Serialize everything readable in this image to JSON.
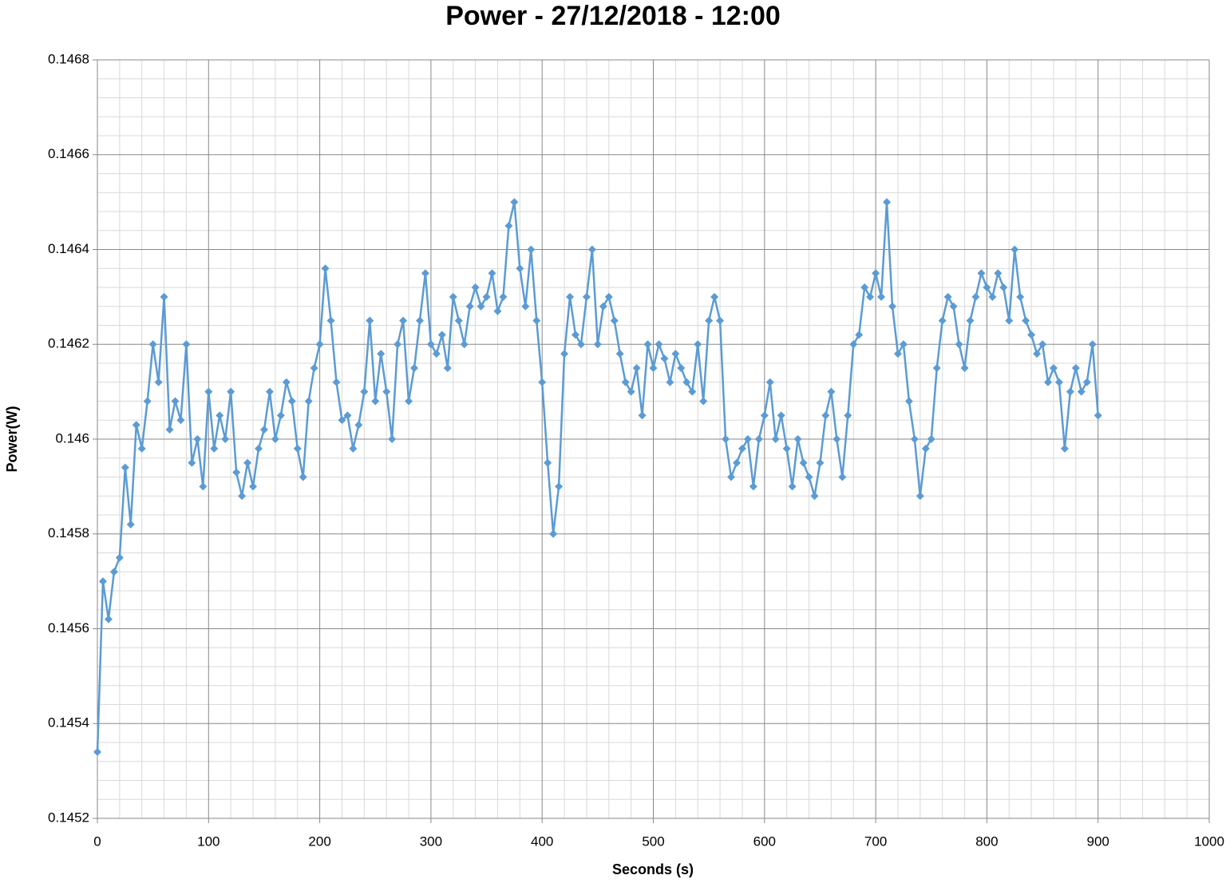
{
  "chart_data": {
    "type": "line",
    "title": "Power - 27/12/2018 - 12:00",
    "x_label": "Seconds (s)",
    "y_label": "Power(W)",
    "xlim": [
      0,
      1000
    ],
    "xticks": [
      0,
      100,
      200,
      300,
      400,
      500,
      600,
      700,
      800,
      900,
      1000
    ],
    "ylim": [
      0.1452,
      0.1468
    ],
    "yticks": [
      0.1452,
      0.1454,
      0.1456,
      0.1458,
      0.146,
      0.1462,
      0.1464,
      0.1466,
      0.1468
    ],
    "grid": true,
    "minor_xticks": [
      20,
      40,
      60,
      80,
      120,
      140,
      160,
      180,
      220,
      240,
      260,
      280,
      320,
      340,
      360,
      380,
      420,
      440,
      460,
      480,
      520,
      540,
      560,
      580,
      620,
      640,
      660,
      680,
      720,
      740,
      760,
      780,
      820,
      840,
      860,
      880,
      920,
      940,
      960,
      980
    ],
    "minor_yticks": [
      0.14524,
      0.14528,
      0.14532,
      0.14536,
      0.14544,
      0.14548,
      0.14552,
      0.14556,
      0.14564,
      0.14568,
      0.14572,
      0.14576,
      0.14584,
      0.14588,
      0.14592,
      0.14596,
      0.14604,
      0.14608,
      0.14612,
      0.14616,
      0.14624,
      0.14628,
      0.14632,
      0.14636,
      0.14644,
      0.14648,
      0.14652,
      0.14656,
      0.14664,
      0.14668,
      0.14672,
      0.14676
    ],
    "marker": "diamond",
    "series": [
      {
        "color": "#5b9bd5",
        "x": [
          0,
          5,
          10,
          15,
          20,
          25,
          30,
          35,
          40,
          45,
          50,
          55,
          60,
          65,
          70,
          75,
          80,
          85,
          90,
          95,
          100,
          105,
          110,
          115,
          120,
          125,
          130,
          135,
          140,
          145,
          150,
          155,
          160,
          165,
          170,
          175,
          180,
          185,
          190,
          195,
          200,
          205,
          210,
          215,
          220,
          225,
          230,
          235,
          240,
          245,
          250,
          255,
          260,
          265,
          270,
          275,
          280,
          285,
          290,
          295,
          300,
          305,
          310,
          315,
          320,
          325,
          330,
          335,
          340,
          345,
          350,
          355,
          360,
          365,
          370,
          375,
          380,
          385,
          390,
          395,
          400,
          405,
          410,
          415,
          420,
          425,
          430,
          435,
          440,
          445,
          450,
          455,
          460,
          465,
          470,
          475,
          480,
          485,
          490,
          495,
          500,
          505,
          510,
          515,
          520,
          525,
          530,
          535,
          540,
          545,
          550,
          555,
          560,
          565,
          570,
          575,
          580,
          585,
          590,
          595,
          600,
          605,
          610,
          615,
          620,
          625,
          630,
          635,
          640,
          645,
          650,
          655,
          660,
          665,
          670,
          675,
          680,
          685,
          690,
          695,
          700,
          705,
          710,
          715,
          720,
          725,
          730,
          735,
          740,
          745,
          750,
          755,
          760,
          765,
          770,
          775,
          780,
          785,
          790,
          795,
          800,
          805,
          810,
          815,
          820,
          825,
          830,
          835,
          840,
          845,
          850,
          855,
          860,
          865,
          870,
          875,
          880,
          885,
          890,
          895,
          900
        ],
        "values": [
          0.14534,
          0.1457,
          0.14562,
          0.14572,
          0.14575,
          0.14594,
          0.14582,
          0.14603,
          0.14598,
          0.14608,
          0.1462,
          0.14612,
          0.1463,
          0.14602,
          0.14608,
          0.14604,
          0.1462,
          0.14595,
          0.146,
          0.1459,
          0.1461,
          0.14598,
          0.14605,
          0.146,
          0.1461,
          0.14593,
          0.14588,
          0.14595,
          0.1459,
          0.14598,
          0.14602,
          0.1461,
          0.146,
          0.14605,
          0.14612,
          0.14608,
          0.14598,
          0.14592,
          0.14608,
          0.14615,
          0.1462,
          0.14636,
          0.14625,
          0.14612,
          0.14604,
          0.14605,
          0.14598,
          0.14603,
          0.1461,
          0.14625,
          0.14608,
          0.14618,
          0.1461,
          0.146,
          0.1462,
          0.14625,
          0.14608,
          0.14615,
          0.14625,
          0.14635,
          0.1462,
          0.14618,
          0.14622,
          0.14615,
          0.1463,
          0.14625,
          0.1462,
          0.14628,
          0.14632,
          0.14628,
          0.1463,
          0.14635,
          0.14627,
          0.1463,
          0.14645,
          0.1465,
          0.14636,
          0.14628,
          0.1464,
          0.14625,
          0.14612,
          0.14595,
          0.1458,
          0.1459,
          0.14618,
          0.1463,
          0.14622,
          0.1462,
          0.1463,
          0.1464,
          0.1462,
          0.14628,
          0.1463,
          0.14625,
          0.14618,
          0.14612,
          0.1461,
          0.14615,
          0.14605,
          0.1462,
          0.14615,
          0.1462,
          0.14617,
          0.14612,
          0.14618,
          0.14615,
          0.14612,
          0.1461,
          0.1462,
          0.14608,
          0.14625,
          0.1463,
          0.14625,
          0.146,
          0.14592,
          0.14595,
          0.14598,
          0.146,
          0.1459,
          0.146,
          0.14605,
          0.14612,
          0.146,
          0.14605,
          0.14598,
          0.1459,
          0.146,
          0.14595,
          0.14592,
          0.14588,
          0.14595,
          0.14605,
          0.1461,
          0.146,
          0.14592,
          0.14605,
          0.1462,
          0.14622,
          0.14632,
          0.1463,
          0.14635,
          0.1463,
          0.1465,
          0.14628,
          0.14618,
          0.1462,
          0.14608,
          0.146,
          0.14588,
          0.14598,
          0.146,
          0.14615,
          0.14625,
          0.1463,
          0.14628,
          0.1462,
          0.14615,
          0.14625,
          0.1463,
          0.14635,
          0.14632,
          0.1463,
          0.14635,
          0.14632,
          0.14625,
          0.1464,
          0.1463,
          0.14625,
          0.14622,
          0.14618,
          0.1462,
          0.14612,
          0.14615,
          0.14612,
          0.14598,
          0.1461,
          0.14615,
          0.1461,
          0.14612,
          0.1462,
          0.14605
        ]
      }
    ]
  }
}
